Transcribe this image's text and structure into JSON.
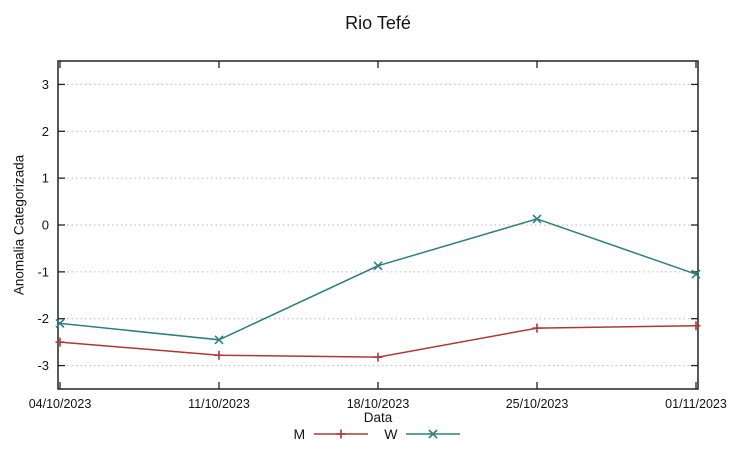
{
  "chart_data": {
    "type": "line",
    "title": "Rio Tefé",
    "xlabel": "Data",
    "ylabel": "Anomalia Categorizada",
    "x": [
      "04/10/2023",
      "11/10/2023",
      "18/10/2023",
      "25/10/2023",
      "01/11/2023"
    ],
    "ylim": [
      -3.5,
      3.5
    ],
    "yticks": [
      -3,
      -2,
      -1,
      0,
      1,
      2,
      3
    ],
    "grid": "horizontal-dotted",
    "legend_position": "below-x-axis",
    "series": [
      {
        "name": "M",
        "color": "#b03636",
        "marker": "plus",
        "values": [
          -2.5,
          -2.78,
          -2.82,
          -2.2,
          -2.15
        ]
      },
      {
        "name": "W",
        "color": "#2f8080",
        "marker": "cross",
        "values": [
          -2.1,
          -2.45,
          -0.87,
          0.13,
          -1.05
        ]
      }
    ],
    "colors": {
      "grid": "#b8b8b8",
      "axis": "#222222",
      "text": "#141414"
    }
  }
}
